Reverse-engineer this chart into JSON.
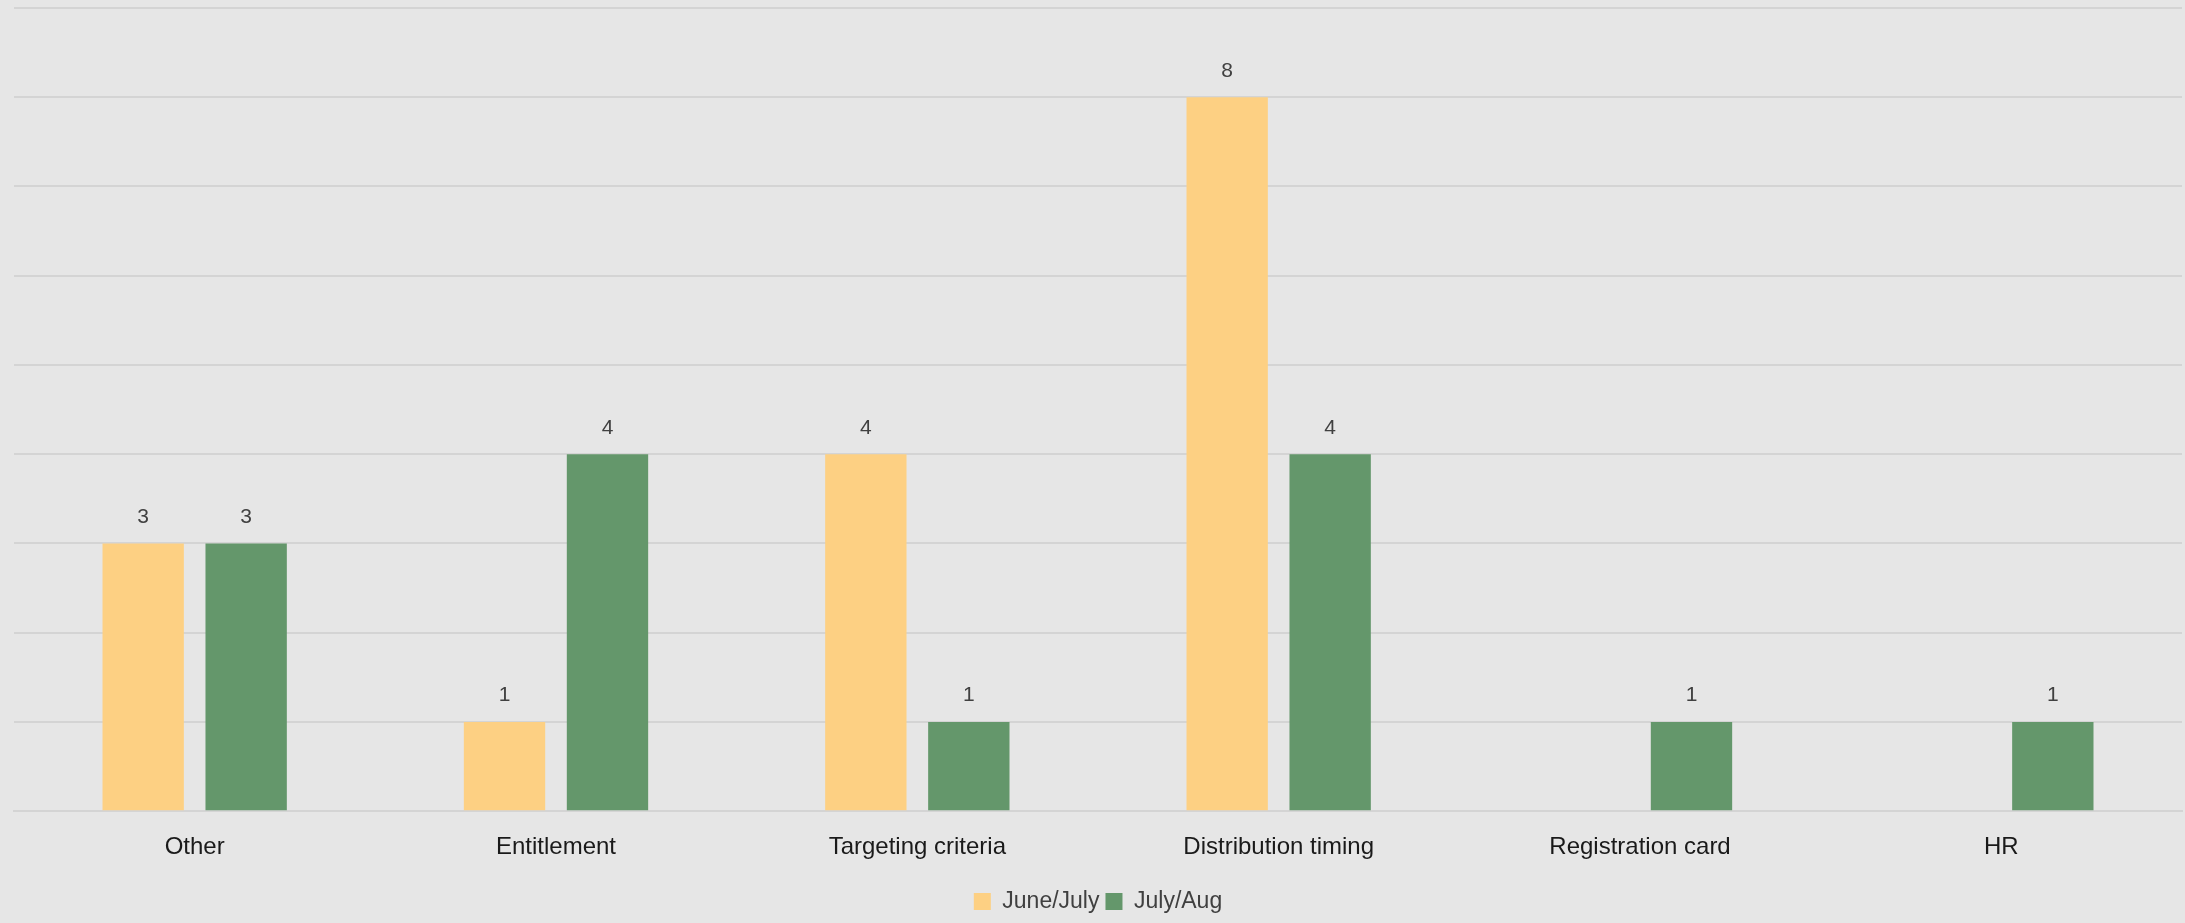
{
  "chart_data": {
    "type": "bar",
    "categories": [
      "Other",
      "Entitlement",
      "Targeting criteria",
      "Distribution timing",
      "Registration card",
      "HR"
    ],
    "series": [
      {
        "name": "June/July",
        "color": "#fdd083",
        "values": [
          3,
          1,
          4,
          8,
          null,
          null
        ]
      },
      {
        "name": "July/Aug",
        "color": "#64976b",
        "values": [
          3,
          4,
          1,
          4,
          1,
          1
        ]
      }
    ],
    "ylim": [
      0,
      9
    ],
    "yticks": [
      {
        "value": 0,
        "label": null
      },
      {
        "value": 1,
        "label": null
      },
      {
        "value": 2,
        "label": null
      },
      {
        "value": 3,
        "label": null
      },
      {
        "value": 4,
        "label": null
      },
      {
        "value": 5,
        "label": null
      },
      {
        "value": 6,
        "label": null
      },
      {
        "value": 7,
        "label": null
      },
      {
        "value": 8,
        "label": null
      },
      {
        "value": 9,
        "label": null
      }
    ],
    "tick_labels": "x",
    "grid": "y",
    "legend": "bottom",
    "data_labels": true
  }
}
